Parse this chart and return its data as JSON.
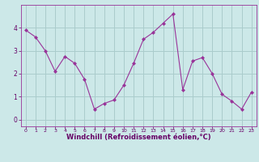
{
  "x": [
    0,
    1,
    2,
    3,
    4,
    5,
    6,
    7,
    8,
    9,
    10,
    11,
    12,
    13,
    14,
    15,
    16,
    17,
    18,
    19,
    20,
    21,
    22,
    23
  ],
  "y": [
    3.9,
    3.6,
    3.0,
    2.1,
    2.75,
    2.45,
    1.75,
    0.45,
    0.7,
    0.85,
    1.5,
    2.45,
    3.5,
    3.8,
    4.2,
    4.6,
    1.3,
    2.55,
    2.7,
    2.0,
    1.1,
    0.8,
    0.45,
    1.2
  ],
  "line_color": "#993399",
  "marker": "D",
  "marker_size": 2.0,
  "bg_color": "#cce8e8",
  "grid_color": "#aacccc",
  "xlabel": "Windchill (Refroidissement éolien,°C)",
  "xlabel_color": "#660066",
  "tick_color": "#660066",
  "ylim": [
    -0.3,
    5.0
  ],
  "xlim": [
    -0.5,
    23.5
  ],
  "yticks": [
    0,
    1,
    2,
    3,
    4
  ],
  "xticks": [
    0,
    1,
    2,
    3,
    4,
    5,
    6,
    7,
    8,
    9,
    10,
    11,
    12,
    13,
    14,
    15,
    16,
    17,
    18,
    19,
    20,
    21,
    22,
    23
  ],
  "spine_color": "#993399",
  "figsize": [
    3.2,
    2.0
  ],
  "dpi": 100
}
